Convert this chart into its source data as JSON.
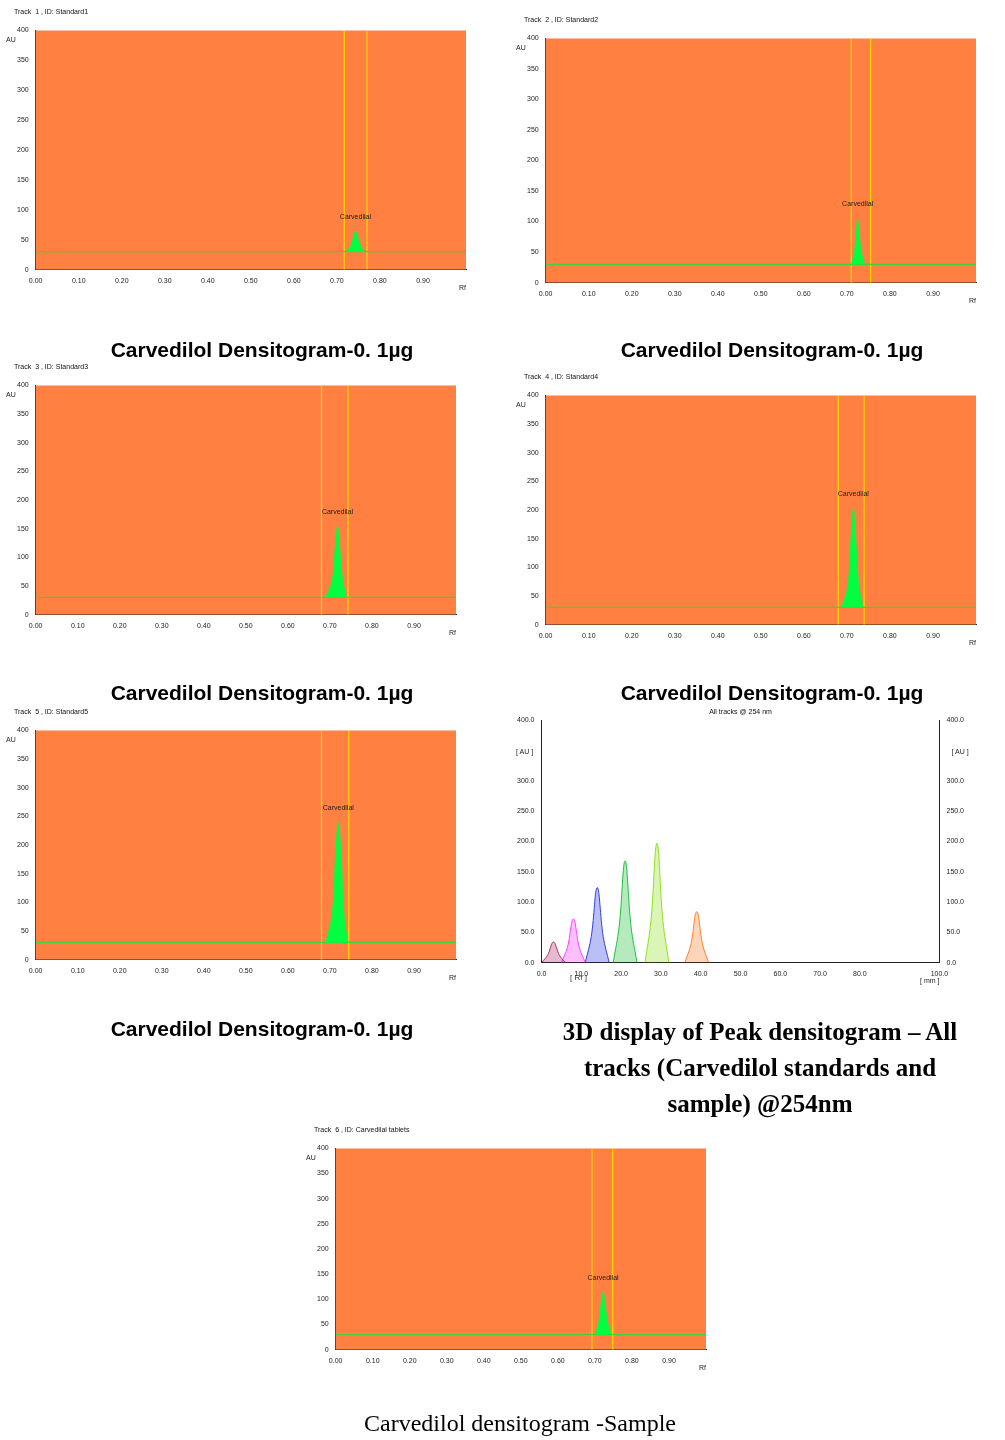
{
  "chart_data": [
    {
      "type": "area",
      "title": "Track  1 , ID: Standard1",
      "xlabel": "Rf",
      "ylabel": "AU",
      "xlim": [
        0,
        1
      ],
      "xticks": [
        {
          "value": 0,
          "label": "0.00"
        },
        {
          "value": 0.1,
          "label": "0.10"
        },
        {
          "value": 0.2,
          "label": "0.20"
        },
        {
          "value": 0.3,
          "label": "0.30"
        },
        {
          "value": 0.4,
          "label": "0.40"
        },
        {
          "value": 0.5,
          "label": "0.50"
        },
        {
          "value": 0.6,
          "label": "0.60"
        },
        {
          "value": 0.7,
          "label": "0.70"
        },
        {
          "value": 0.8,
          "label": "0.80"
        },
        {
          "value": 0.9,
          "label": "0.90"
        }
      ],
      "ylim": [
        0,
        400
      ],
      "yticks": [
        0,
        50,
        100,
        150,
        200,
        250,
        300,
        350,
        400
      ],
      "series": [
        {
          "color": "#00ff40",
          "x": [
            0.72,
            0.73,
            0.737,
            0.743,
            0.75,
            0.757,
            0.765
          ],
          "values": [
            30,
            38,
            52,
            65,
            52,
            38,
            30
          ]
        }
      ],
      "ref_lines": [
        {
          "axis": "x",
          "value": 0.717,
          "color": "#ffd700"
        },
        {
          "axis": "x",
          "value": 0.77,
          "color": "#ffd700"
        },
        {
          "axis": "y",
          "value": 30,
          "color": "#40d040"
        }
      ],
      "annotations": [
        "Carvedilol Densitogram-0. 1µg",
        {
          "text": "Carvedilal",
          "x": 0.743,
          "y": 65
        }
      ]
    },
    {
      "type": "area",
      "title": "Track  2 , ID: Standard2",
      "xlabel": "Rf",
      "ylabel": "AU",
      "xlim": [
        0,
        1
      ],
      "xticks": [
        {
          "value": 0,
          "label": "0.00"
        },
        {
          "value": 0.1,
          "label": "0.10"
        },
        {
          "value": 0.2,
          "label": "0.20"
        },
        {
          "value": 0.3,
          "label": "0.30"
        },
        {
          "value": 0.4,
          "label": "0.40"
        },
        {
          "value": 0.5,
          "label": "0.50"
        },
        {
          "value": 0.6,
          "label": "0.60"
        },
        {
          "value": 0.7,
          "label": "0.70"
        },
        {
          "value": 0.8,
          "label": "0.80"
        },
        {
          "value": 0.9,
          "label": "0.90"
        }
      ],
      "ylim": [
        0,
        400
      ],
      "yticks": [
        0,
        50,
        100,
        150,
        200,
        250,
        300,
        350,
        400
      ],
      "series": [
        {
          "color": "#00ff40",
          "x": [
            0.71,
            0.717,
            0.721,
            0.725,
            0.729,
            0.734,
            0.742
          ],
          "values": [
            30,
            50,
            80,
            105,
            80,
            50,
            30
          ]
        }
      ],
      "ref_lines": [
        {
          "axis": "x",
          "value": 0.71,
          "color": "#ffd700"
        },
        {
          "axis": "x",
          "value": 0.755,
          "color": "#ffd700"
        },
        {
          "axis": "y",
          "value": 30,
          "color": "#40d040"
        }
      ],
      "annotations": [
        "Carvedilol Densitogram-0. 1µg",
        {
          "text": "Carvedilal",
          "x": 0.725,
          "y": 105
        }
      ]
    },
    {
      "type": "area",
      "title": "Track  3 , ID: Standard3",
      "xlabel": "Rf",
      "ylabel": "AU",
      "xlim": [
        0,
        1
      ],
      "xticks": [
        {
          "value": 0,
          "label": "0.00"
        },
        {
          "value": 0.1,
          "label": "0.10"
        },
        {
          "value": 0.2,
          "label": "0.20"
        },
        {
          "value": 0.3,
          "label": "0.30"
        },
        {
          "value": 0.4,
          "label": "0.40"
        },
        {
          "value": 0.5,
          "label": "0.50"
        },
        {
          "value": 0.6,
          "label": "0.60"
        },
        {
          "value": 0.7,
          "label": "0.70"
        },
        {
          "value": 0.8,
          "label": "0.80"
        },
        {
          "value": 0.9,
          "label": "0.90"
        }
      ],
      "ylim": [
        0,
        400
      ],
      "yticks": [
        0,
        50,
        100,
        150,
        200,
        250,
        300,
        350,
        400
      ],
      "series": [
        {
          "color": "#00ff40",
          "x": [
            0.69,
            0.705,
            0.712,
            0.718,
            0.724,
            0.731,
            0.74
          ],
          "values": [
            30,
            60,
            115,
            155,
            115,
            60,
            30
          ]
        }
      ],
      "ref_lines": [
        {
          "axis": "x",
          "value": 0.68,
          "color": "#ffd700"
        },
        {
          "axis": "x",
          "value": 0.743,
          "color": "#ffd700"
        },
        {
          "axis": "y",
          "value": 30,
          "color": "#40d040"
        }
      ],
      "annotations": [
        "Carvedilol Densitogram-0. 1µg",
        {
          "text": "Carvedilal",
          "x": 0.718,
          "y": 155
        }
      ]
    },
    {
      "type": "area",
      "title": "Track  4 , ID: Standard4",
      "xlabel": "Rf",
      "ylabel": "AU",
      "xlim": [
        0,
        1
      ],
      "xticks": [
        {
          "value": 0,
          "label": "0.00"
        },
        {
          "value": 0.1,
          "label": "0.10"
        },
        {
          "value": 0.2,
          "label": "0.20"
        },
        {
          "value": 0.3,
          "label": "0.30"
        },
        {
          "value": 0.4,
          "label": "0.40"
        },
        {
          "value": 0.5,
          "label": "0.50"
        },
        {
          "value": 0.6,
          "label": "0.60"
        },
        {
          "value": 0.7,
          "label": "0.70"
        },
        {
          "value": 0.8,
          "label": "0.80"
        },
        {
          "value": 0.9,
          "label": "0.90"
        }
      ],
      "ylim": [
        0,
        400
      ],
      "yticks": [
        0,
        50,
        100,
        150,
        200,
        250,
        300,
        350,
        400
      ],
      "series": [
        {
          "color": "#00ff40",
          "x": [
            0.688,
            0.702,
            0.709,
            0.715,
            0.721,
            0.728,
            0.738
          ],
          "values": [
            30,
            70,
            150,
            203,
            150,
            70,
            30
          ]
        }
      ],
      "ref_lines": [
        {
          "axis": "x",
          "value": 0.68,
          "color": "#ffd700"
        },
        {
          "axis": "x",
          "value": 0.74,
          "color": "#ffd700"
        },
        {
          "axis": "y",
          "value": 30,
          "color": "#40d040"
        }
      ],
      "annotations": [
        "Carvedilol Densitogram-0. 1µg",
        {
          "text": "Carvedilal",
          "x": 0.715,
          "y": 203
        }
      ]
    },
    {
      "type": "area",
      "title": "Track  5 , ID: Standard5",
      "xlabel": "Rf",
      "ylabel": "AU",
      "xlim": [
        0,
        1
      ],
      "xticks": [
        {
          "value": 0,
          "label": "0.00"
        },
        {
          "value": 0.1,
          "label": "0.10"
        },
        {
          "value": 0.2,
          "label": "0.20"
        },
        {
          "value": 0.3,
          "label": "0.30"
        },
        {
          "value": 0.4,
          "label": "0.40"
        },
        {
          "value": 0.5,
          "label": "0.50"
        },
        {
          "value": 0.6,
          "label": "0.60"
        },
        {
          "value": 0.7,
          "label": "0.70"
        },
        {
          "value": 0.8,
          "label": "0.80"
        },
        {
          "value": 0.9,
          "label": "0.90"
        }
      ],
      "ylim": [
        0,
        400
      ],
      "yticks": [
        0,
        50,
        100,
        150,
        200,
        250,
        300,
        350,
        400
      ],
      "series": [
        {
          "color": "#00ff40",
          "x": [
            0.69,
            0.705,
            0.713,
            0.72,
            0.727,
            0.734,
            0.743
          ],
          "values": [
            30,
            80,
            180,
            240,
            180,
            80,
            30
          ]
        }
      ],
      "ref_lines": [
        {
          "axis": "x",
          "value": 0.68,
          "color": "#ffd700"
        },
        {
          "axis": "x",
          "value": 0.745,
          "color": "#ffd700"
        },
        {
          "axis": "y",
          "value": 30,
          "color": "#40d040"
        }
      ],
      "annotations": [
        "Carvedilol Densitogram-0. 1µg",
        {
          "text": "Carvedilal",
          "x": 0.72,
          "y": 240
        }
      ]
    },
    {
      "type": "area",
      "title": "All tracks @ 254 nm",
      "xlabel": "[ mm ]",
      "ylabel": "[ AU ]",
      "y2label": "[ AU ]",
      "xlim": [
        0,
        100
      ],
      "xticks": [
        {
          "value": 0,
          "label": "0.0"
        },
        {
          "value": 10,
          "label": "10.0"
        },
        {
          "value": 20,
          "label": "20.0"
        },
        {
          "value": 30,
          "label": "30.0"
        },
        {
          "value": 40,
          "label": "40.0"
        },
        {
          "value": 50,
          "label": "50.0"
        },
        {
          "value": 60,
          "label": "60.0"
        },
        {
          "value": 70,
          "label": "70.0"
        },
        {
          "value": 80,
          "label": "80.0"
        },
        {
          "value": 100,
          "label": "100.0"
        }
      ],
      "ylim": [
        0,
        400
      ],
      "yticks": [
        {
          "value": 0,
          "label": "0.0"
        },
        {
          "value": 50,
          "label": "50.0"
        },
        {
          "value": 100,
          "label": "100.0"
        },
        {
          "value": 150,
          "label": "150.0"
        },
        {
          "value": 200,
          "label": "200.0"
        },
        {
          "value": 250,
          "label": "250.0"
        },
        {
          "value": 300,
          "label": "300.0"
        },
        {
          "value": 400,
          "label": "400.0"
        }
      ],
      "y2lim": [
        0,
        400
      ],
      "y2ticks": [
        {
          "value": 0,
          "label": "0.0"
        },
        {
          "value": 50,
          "label": "50.0"
        },
        {
          "value": 100,
          "label": "100.0"
        },
        {
          "value": 150,
          "label": "150.0"
        },
        {
          "value": 200,
          "label": "200.0"
        },
        {
          "value": 250,
          "label": "250.0"
        },
        {
          "value": 300,
          "label": "300.0"
        },
        {
          "value": 400,
          "label": "400.0"
        }
      ],
      "series": [
        {
          "color": "#b03070",
          "x": [
            0,
            1.5,
            3,
            4.5,
            6
          ],
          "values": [
            0,
            12,
            34,
            12,
            0
          ]
        },
        {
          "color": "#ff40ff",
          "x": [
            5,
            6.5,
            8,
            9.5,
            11
          ],
          "values": [
            0,
            25,
            72,
            25,
            0
          ]
        },
        {
          "color": "#3040e0",
          "x": [
            11,
            12.5,
            14,
            15.5,
            17
          ],
          "values": [
            0,
            43,
            124,
            43,
            0
          ]
        },
        {
          "color": "#20c040",
          "x": [
            18,
            19.5,
            21,
            22.5,
            24
          ],
          "values": [
            0,
            59,
            168,
            59,
            0
          ]
        },
        {
          "color": "#90e020",
          "x": [
            26,
            27.5,
            29,
            30.5,
            32
          ],
          "values": [
            0,
            69,
            197,
            69,
            0
          ]
        },
        {
          "color": "#ff8030",
          "x": [
            36,
            37.5,
            39,
            40.5,
            42
          ],
          "values": [
            0,
            29,
            84,
            29,
            0
          ]
        }
      ],
      "annotations": [
        "3D display of Peak densitogram – All tracks (Carvedilol standards and sample) @254nm",
        "[ Rf ]"
      ]
    },
    {
      "type": "area",
      "title": "Track  6 , ID: Carvedilal tablets",
      "xlabel": "Rf",
      "ylabel": "AU",
      "xlim": [
        0,
        1
      ],
      "xticks": [
        {
          "value": 0,
          "label": "0.00"
        },
        {
          "value": 0.1,
          "label": "0.10"
        },
        {
          "value": 0.2,
          "label": "0.20"
        },
        {
          "value": 0.3,
          "label": "0.30"
        },
        {
          "value": 0.4,
          "label": "0.40"
        },
        {
          "value": 0.5,
          "label": "0.50"
        },
        {
          "value": 0.6,
          "label": "0.60"
        },
        {
          "value": 0.7,
          "label": "0.70"
        },
        {
          "value": 0.8,
          "label": "0.80"
        },
        {
          "value": 0.9,
          "label": "0.90"
        }
      ],
      "ylim": [
        0,
        400
      ],
      "yticks": [
        0,
        50,
        100,
        150,
        200,
        250,
        300,
        350,
        400
      ],
      "series": [
        {
          "color": "#00ff40",
          "x": [
            0.7,
            0.71,
            0.716,
            0.722,
            0.728,
            0.735,
            0.745
          ],
          "values": [
            30,
            55,
            90,
            115,
            90,
            55,
            30
          ]
        }
      ],
      "ref_lines": [
        {
          "axis": "x",
          "value": 0.692,
          "color": "#ffd700"
        },
        {
          "axis": "x",
          "value": 0.748,
          "color": "#ffd700"
        },
        {
          "axis": "y",
          "value": 30,
          "color": "#40d040"
        }
      ],
      "annotations": [
        "Carvedilol densitogram -Sample",
        {
          "text": "Carvedilal",
          "x": 0.722,
          "y": 115
        }
      ]
    }
  ]
}
